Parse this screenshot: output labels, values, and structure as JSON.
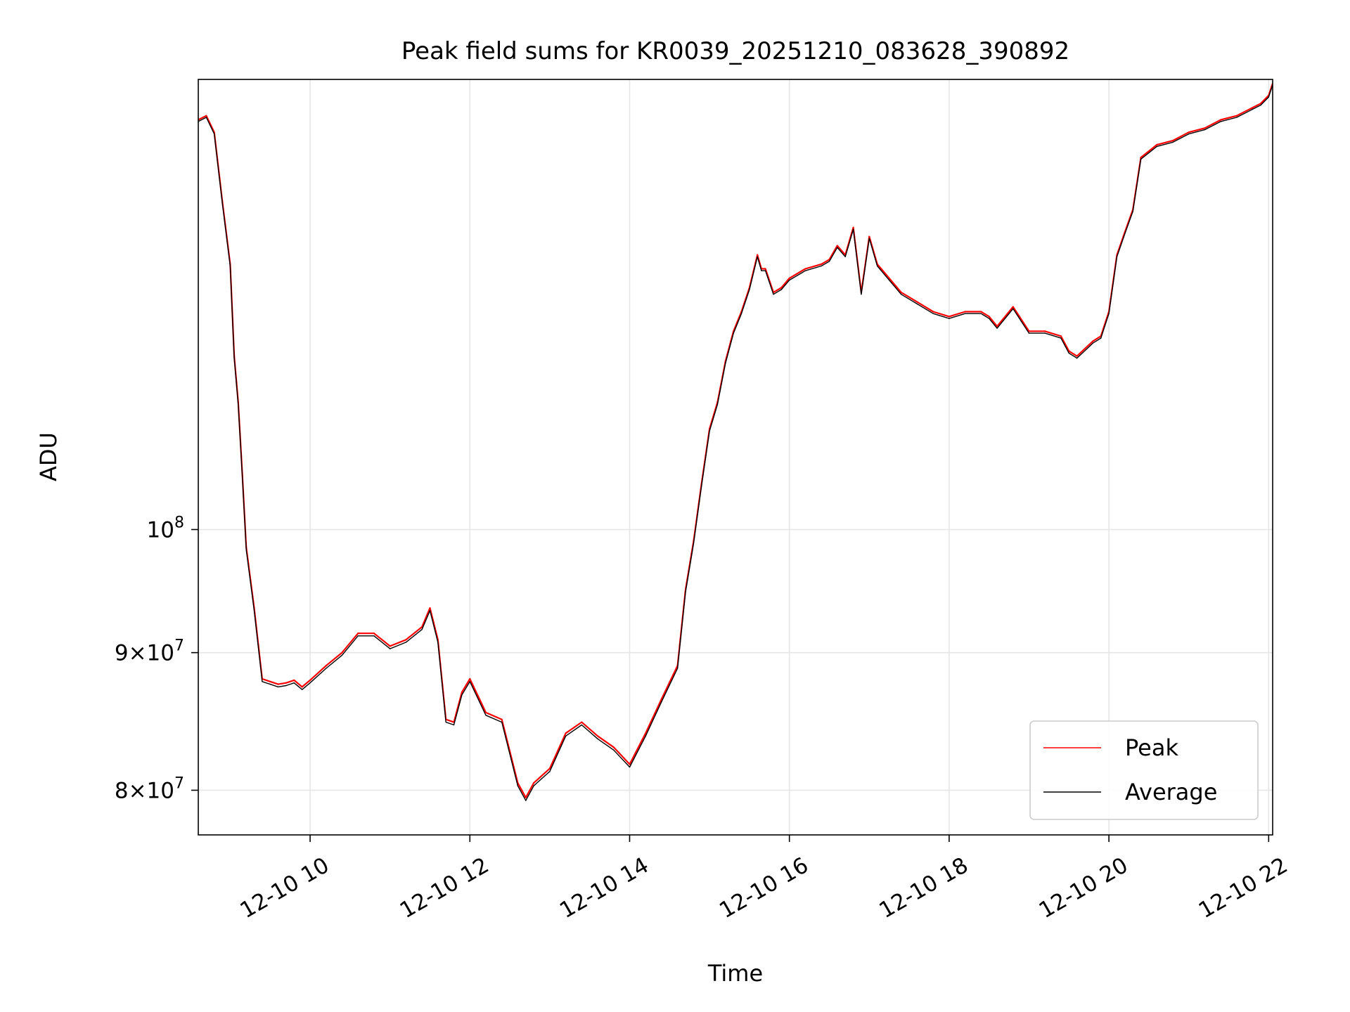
{
  "chart_data": {
    "type": "line",
    "title": "Peak field sums for KR0039_20251210_083628_390892",
    "xlabel": "Time",
    "ylabel": "ADU",
    "y_scale": "log",
    "xlim": [
      8.6,
      22.05
    ],
    "ylim": [
      77000000,
      147000000
    ],
    "grid": true,
    "legend_position": "lower right",
    "x_ticks": [
      {
        "value": 10,
        "label": "12-10 10"
      },
      {
        "value": 12,
        "label": "12-10 12"
      },
      {
        "value": 14,
        "label": "12-10 14"
      },
      {
        "value": 16,
        "label": "12-10 16"
      },
      {
        "value": 18,
        "label": "12-10 18"
      },
      {
        "value": 20,
        "label": "12-10 20"
      },
      {
        "value": 22,
        "label": "12-10 22"
      }
    ],
    "y_ticks": [
      {
        "value": 80000000,
        "mantissa": "8",
        "base": "10",
        "exp": "7"
      },
      {
        "value": 90000000,
        "mantissa": "9",
        "base": "10",
        "exp": "7"
      },
      {
        "value": 100000000,
        "mantissa": "",
        "base": "10",
        "exp": "8"
      }
    ],
    "times": [
      8.6,
      8.7,
      8.8,
      8.9,
      9.0,
      9.05,
      9.1,
      9.15,
      9.2,
      9.3,
      9.4,
      9.5,
      9.6,
      9.7,
      9.8,
      9.9,
      10.0,
      10.2,
      10.4,
      10.6,
      10.8,
      11.0,
      11.2,
      11.4,
      11.5,
      11.6,
      11.7,
      11.8,
      11.9,
      12.0,
      12.2,
      12.4,
      12.6,
      12.7,
      12.8,
      12.9,
      13.0,
      13.2,
      13.4,
      13.6,
      13.8,
      14.0,
      14.2,
      14.4,
      14.6,
      14.7,
      14.8,
      14.9,
      15.0,
      15.1,
      15.2,
      15.3,
      15.4,
      15.5,
      15.6,
      15.65,
      15.7,
      15.8,
      15.9,
      16.0,
      16.2,
      16.4,
      16.5,
      16.6,
      16.7,
      16.8,
      16.9,
      17.0,
      17.1,
      17.2,
      17.4,
      17.6,
      17.8,
      18.0,
      18.2,
      18.4,
      18.5,
      18.6,
      18.8,
      19.0,
      19.2,
      19.4,
      19.5,
      19.6,
      19.8,
      19.9,
      20.0,
      20.1,
      20.2,
      20.3,
      20.4,
      20.6,
      20.8,
      21.0,
      21.2,
      21.4,
      21.6,
      21.8,
      21.9,
      22.0,
      22.05
    ],
    "series": [
      {
        "name": "Peak",
        "color": "#ff0000",
        "values": [
          142000000,
          142500000,
          140500000,
          132500000,
          125500000,
          116000000,
          111500000,
          105000000,
          98500000,
          93500000,
          88000000,
          87800000,
          87600000,
          87700000,
          87900000,
          87400000,
          87900000,
          89000000,
          90000000,
          91500000,
          91500000,
          90500000,
          91000000,
          92000000,
          93500000,
          91000000,
          85000000,
          84800000,
          87000000,
          88000000,
          85500000,
          85000000,
          80500000,
          79500000,
          80500000,
          81000000,
          81500000,
          84000000,
          84800000,
          83800000,
          83000000,
          81800000,
          84000000,
          86500000,
          89000000,
          95000000,
          99000000,
          104000000,
          109000000,
          111500000,
          115500000,
          118500000,
          120500000,
          123000000,
          126500000,
          125000000,
          125000000,
          122500000,
          123000000,
          124000000,
          125000000,
          125500000,
          126000000,
          127500000,
          126500000,
          129500000,
          122500000,
          128500000,
          125500000,
          124500000,
          122500000,
          121500000,
          120500000,
          120000000,
          120500000,
          120500000,
          120000000,
          119000000,
          121000000,
          118500000,
          118500000,
          118000000,
          116500000,
          116000000,
          117500000,
          118000000,
          120500000,
          126500000,
          129000000,
          131500000,
          137500000,
          139000000,
          139500000,
          140500000,
          141000000,
          142000000,
          142500000,
          143500000,
          144000000,
          145000000,
          146500000
        ]
      },
      {
        "name": "Average",
        "color": "#000000",
        "values": [
          141800000,
          142300000,
          140300000,
          132300000,
          125300000,
          115800000,
          111300000,
          104800000,
          98300000,
          93300000,
          87800000,
          87600000,
          87400000,
          87500000,
          87700000,
          87200000,
          87700000,
          88800000,
          89800000,
          91300000,
          91300000,
          90300000,
          90800000,
          91800000,
          93300000,
          90800000,
          84800000,
          84600000,
          86800000,
          87800000,
          85300000,
          84800000,
          80300000,
          79300000,
          80300000,
          80800000,
          81300000,
          83800000,
          84600000,
          83600000,
          82800000,
          81600000,
          83800000,
          86300000,
          88800000,
          94800000,
          98800000,
          103800000,
          108800000,
          111300000,
          115300000,
          118300000,
          120300000,
          122800000,
          126300000,
          124800000,
          124800000,
          122300000,
          122800000,
          123800000,
          124800000,
          125300000,
          125800000,
          127300000,
          126300000,
          129300000,
          122300000,
          128300000,
          125300000,
          124300000,
          122300000,
          121300000,
          120300000,
          119800000,
          120300000,
          120300000,
          119800000,
          118800000,
          120800000,
          118300000,
          118300000,
          117800000,
          116300000,
          115800000,
          117300000,
          117800000,
          120300000,
          126300000,
          128800000,
          131300000,
          137300000,
          138800000,
          139300000,
          140300000,
          140800000,
          141800000,
          142300000,
          143300000,
          143800000,
          144800000,
          146300000
        ]
      }
    ]
  }
}
